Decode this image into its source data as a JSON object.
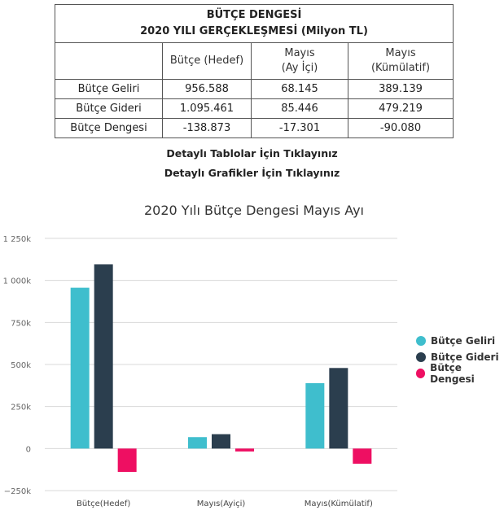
{
  "table": {
    "title_line1": "BÜTÇE DENGESİ",
    "title_line2": "2020 YILI GERÇEKLEŞMESİ (Milyon TL)",
    "headers": [
      "",
      "Bütçe (Hedef)",
      "Mayıs\n(Ay İçi)",
      "Mayıs\n(Kümülatif)"
    ],
    "rows": [
      {
        "label": "Bütçe Geliri",
        "values": [
          "956.588",
          "68.145",
          "389.139"
        ]
      },
      {
        "label": "Bütçe Gideri",
        "values": [
          "1.095.461",
          "85.446",
          "479.219"
        ]
      },
      {
        "label": "Bütçe Dengesi",
        "values": [
          "-138.873",
          "-17.301",
          "-90.080"
        ]
      }
    ]
  },
  "links": {
    "tables": "Detaylı Tablolar İçin Tıklayınız",
    "charts": "Detaylı Grafikler İçin Tıklayınız"
  },
  "chart_data": {
    "type": "bar",
    "title": "2020 Yılı Bütçe Dengesi Mayıs Ayı",
    "categories": [
      "Bütçe(Hedef)",
      "Mayıs(Ayiçi)",
      "Mayıs(Kümülatif)"
    ],
    "series": [
      {
        "name": "Bütçe Geliri",
        "color": "#3fbecd",
        "values": [
          956588,
          68145,
          389139
        ]
      },
      {
        "name": "Bütçe Gideri",
        "color": "#2b3e4e",
        "values": [
          1095461,
          85446,
          479219
        ]
      },
      {
        "name": "Bütçe Dengesi",
        "color": "#ee0f62",
        "values": [
          -138873,
          -17301,
          -90080
        ]
      }
    ],
    "ylim": [
      -250000,
      1250000
    ],
    "yticks": [
      -250000,
      0,
      250000,
      500000,
      750000,
      1000000,
      1250000
    ],
    "ytick_labels": [
      "−250k",
      "0",
      "250k",
      "500k",
      "750k",
      "1 000k",
      "1 250k"
    ],
    "grid": true,
    "legend_position": "right"
  }
}
